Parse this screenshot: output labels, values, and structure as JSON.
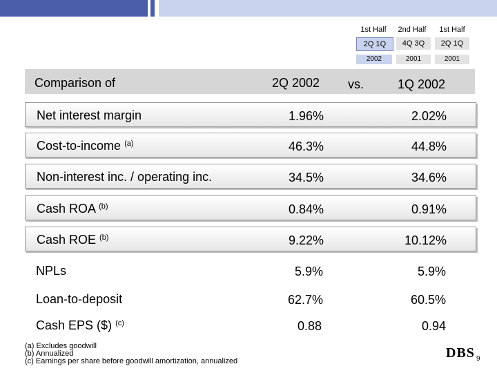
{
  "header": {
    "comparison_label": "Comparison of",
    "current_col": "2Q 2002",
    "vs_label": "vs.",
    "prior_col": "1Q 2002"
  },
  "periods": [
    {
      "half": "1st Half",
      "quarters": [
        "2Q",
        "1Q"
      ],
      "year": "2002",
      "highlight": true
    },
    {
      "half": "2nd Half",
      "quarters": [
        "4Q",
        "3Q"
      ],
      "year": "2001",
      "highlight": false
    },
    {
      "half": "1st Half",
      "quarters": [
        "2Q",
        "1Q"
      ],
      "year": "2001",
      "highlight": false
    }
  ],
  "rows": [
    {
      "label": "Net interest margin",
      "note": "",
      "current": "1.96%",
      "prior": "2.02%"
    },
    {
      "label": "Cost-to-income",
      "note": "(a)",
      "current": "46.3%",
      "prior": "44.8%"
    },
    {
      "label": "Non-interest inc. / operating inc.",
      "note": "",
      "current": "34.5%",
      "prior": "34.6%"
    },
    {
      "label": "Cash ROA",
      "note": "(b)",
      "current": "0.84%",
      "prior": "0.91%"
    },
    {
      "label": "Cash ROE",
      "note": "(b)",
      "current": "9.22%",
      "prior": "10.12%"
    },
    {
      "label": "NPLs",
      "note": "",
      "current": "5.9%",
      "prior": "5.9%"
    },
    {
      "label": "Loan-to-deposit",
      "note": "",
      "current": "62.7%",
      "prior": "60.5%"
    },
    {
      "label": "Cash EPS ($)",
      "note": "(c)",
      "current": "0.88",
      "prior": "0.94"
    }
  ],
  "footnotes": [
    "(a) Excludes goodwill",
    "(b) Annualized",
    "(c) Earnings per share before goodwill amortization, annualized"
  ],
  "logo": "DBS",
  "page_number": "9",
  "colors": {
    "accent_blue": "#4a5da8",
    "light_blue": "#c9d3ee",
    "band_grey": "#d6d6d6"
  }
}
